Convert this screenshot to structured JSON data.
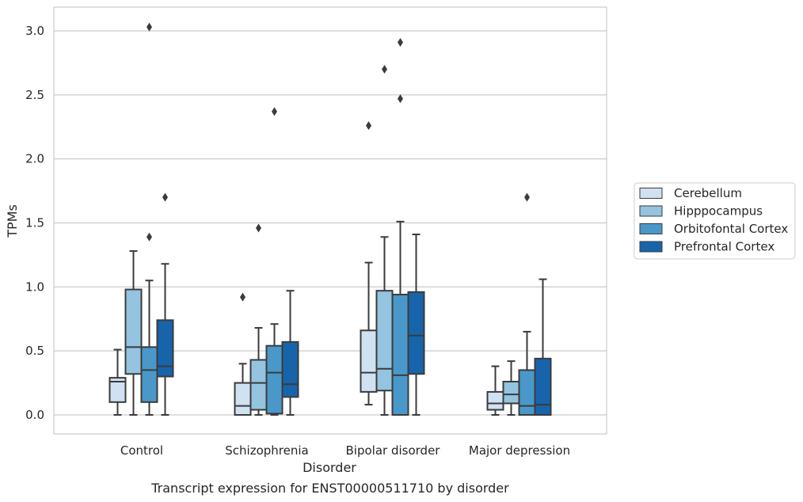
{
  "chart_data": {
    "type": "box",
    "title": "",
    "caption": "Transcript expression for ENST00000511710 by disorder",
    "xlabel": "Disorder",
    "ylabel": "TPMs",
    "ylim": [
      -0.15,
      3.2
    ],
    "yticks": [
      "0.0",
      "0.5",
      "1.0",
      "1.5",
      "2.0",
      "2.5",
      "3.0"
    ],
    "grid": "horizontal",
    "legend_position": "right",
    "categories": [
      "Control",
      "Schizophrenia",
      "Bipolar disorder",
      "Major depression"
    ],
    "series": [
      {
        "name": "Cerebellum",
        "color": "#d0e1f2",
        "boxes": [
          {
            "whisker_low": 0.0,
            "q1": 0.1,
            "median": 0.26,
            "q3": 0.29,
            "whisker_high": 0.51,
            "outliers": []
          },
          {
            "whisker_low": 0.0,
            "q1": 0.0,
            "median": 0.07,
            "q3": 0.25,
            "whisker_high": 0.4,
            "outliers": [
              0.92
            ]
          },
          {
            "whisker_low": 0.08,
            "q1": 0.18,
            "median": 0.33,
            "q3": 0.66,
            "whisker_high": 1.19,
            "outliers": [
              2.26
            ]
          },
          {
            "whisker_low": 0.0,
            "q1": 0.04,
            "median": 0.09,
            "q3": 0.18,
            "whisker_high": 0.38,
            "outliers": []
          }
        ]
      },
      {
        "name": "Hipppocampus",
        "color": "#94c4df",
        "boxes": [
          {
            "whisker_low": 0.0,
            "q1": 0.32,
            "median": 0.53,
            "q3": 0.98,
            "whisker_high": 1.28,
            "outliers": []
          },
          {
            "whisker_low": 0.0,
            "q1": 0.04,
            "median": 0.25,
            "q3": 0.43,
            "whisker_high": 0.68,
            "outliers": [
              1.46
            ]
          },
          {
            "whisker_low": 0.0,
            "q1": 0.19,
            "median": 0.36,
            "q3": 0.97,
            "whisker_high": 1.39,
            "outliers": [
              2.7
            ]
          },
          {
            "whisker_low": 0.0,
            "q1": 0.09,
            "median": 0.16,
            "q3": 0.26,
            "whisker_high": 0.42,
            "outliers": []
          }
        ]
      },
      {
        "name": "Orbitofontal Cortex",
        "color": "#4a98c9",
        "boxes": [
          {
            "whisker_low": 0.0,
            "q1": 0.1,
            "median": 0.35,
            "q3": 0.53,
            "whisker_high": 1.05,
            "outliers": [
              1.39,
              3.03
            ]
          },
          {
            "whisker_low": 0.0,
            "q1": 0.01,
            "median": 0.33,
            "q3": 0.54,
            "whisker_high": 0.71,
            "outliers": [
              2.37
            ]
          },
          {
            "whisker_low": 0.0,
            "q1": 0.0,
            "median": 0.31,
            "q3": 0.94,
            "whisker_high": 1.51,
            "outliers": [
              2.47,
              2.91
            ]
          },
          {
            "whisker_low": 0.0,
            "q1": 0.0,
            "median": 0.07,
            "q3": 0.35,
            "whisker_high": 0.65,
            "outliers": [
              1.7
            ]
          }
        ]
      },
      {
        "name": "Prefrontal Cortex",
        "color": "#1764ab",
        "boxes": [
          {
            "whisker_low": 0.0,
            "q1": 0.3,
            "median": 0.38,
            "q3": 0.74,
            "whisker_high": 1.18,
            "outliers": [
              1.7
            ]
          },
          {
            "whisker_low": 0.0,
            "q1": 0.14,
            "median": 0.24,
            "q3": 0.57,
            "whisker_high": 0.97,
            "outliers": []
          },
          {
            "whisker_low": 0.0,
            "q1": 0.32,
            "median": 0.62,
            "q3": 0.96,
            "whisker_high": 1.41,
            "outliers": []
          },
          {
            "whisker_low": 0.0,
            "q1": 0.0,
            "median": 0.08,
            "q3": 0.44,
            "whisker_high": 1.06,
            "outliers": []
          }
        ]
      }
    ]
  }
}
